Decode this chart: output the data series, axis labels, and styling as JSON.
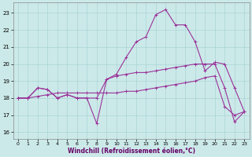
{
  "xlabel": "Windchill (Refroidissement éolien,°C)",
  "bg_color": "#cce9e9",
  "grid_color": "#aad4d4",
  "line_color": "#993399",
  "hours": [
    0,
    1,
    2,
    3,
    4,
    5,
    6,
    7,
    8,
    9,
    10,
    11,
    12,
    13,
    14,
    15,
    16,
    17,
    18,
    19,
    20,
    21,
    22,
    23
  ],
  "curve1": [
    18.0,
    18.0,
    18.6,
    18.5,
    18.0,
    18.2,
    18.0,
    18.0,
    18.0,
    19.1,
    19.4,
    20.4,
    21.3,
    21.6,
    22.9,
    23.2,
    22.3,
    22.3,
    21.3,
    19.6,
    20.1,
    20.0,
    18.6,
    17.2
  ],
  "curve2": [
    18.0,
    18.0,
    18.6,
    18.5,
    18.0,
    18.2,
    18.0,
    18.0,
    16.5,
    19.1,
    19.3,
    19.4,
    19.5,
    19.5,
    19.6,
    19.7,
    19.8,
    19.9,
    20.0,
    20.0,
    20.0,
    18.6,
    16.6,
    17.2
  ],
  "curve3": [
    18.0,
    18.0,
    18.1,
    18.2,
    18.3,
    18.3,
    18.3,
    18.3,
    18.3,
    18.3,
    18.3,
    18.4,
    18.4,
    18.5,
    18.6,
    18.7,
    18.8,
    18.9,
    19.0,
    19.2,
    19.3,
    17.5,
    17.0,
    17.2
  ],
  "ylim_min": 15.6,
  "ylim_max": 23.6,
  "yticks": [
    16,
    17,
    18,
    19,
    20,
    21,
    22,
    23
  ]
}
